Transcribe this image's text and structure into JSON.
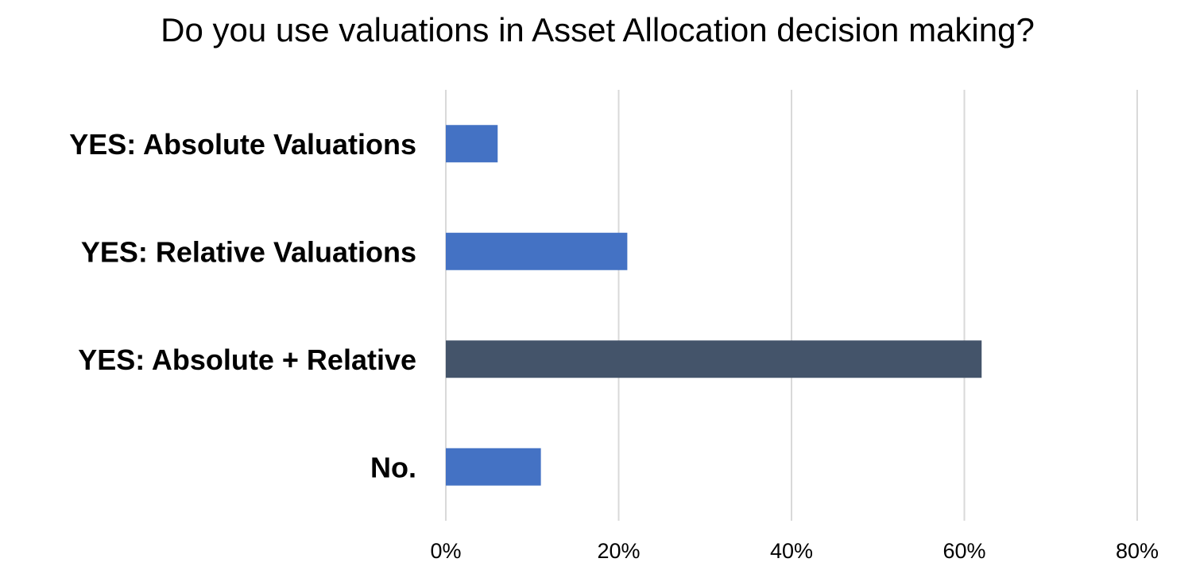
{
  "chart_data": {
    "type": "bar",
    "orientation": "horizontal",
    "title": "Do you use valuations in Asset Allocation decision making?",
    "xlabel": "",
    "ylabel": "",
    "categories": [
      "YES: Absolute Valuations",
      "YES: Relative Valuations",
      "YES: Absolute + Relative",
      "No."
    ],
    "values": [
      6,
      21,
      62,
      11
    ],
    "value_unit": "%",
    "xlim": [
      0,
      80
    ],
    "x_ticks": [
      0,
      20,
      40,
      60,
      80
    ],
    "x_tick_labels": [
      "0%",
      "20%",
      "40%",
      "60%",
      "80%"
    ],
    "bar_colors": [
      "#4472C4",
      "#4472C4",
      "#44546A",
      "#4472C4"
    ],
    "grid": "vertical",
    "grid_color": "#D9D9D9",
    "legend": "none"
  }
}
